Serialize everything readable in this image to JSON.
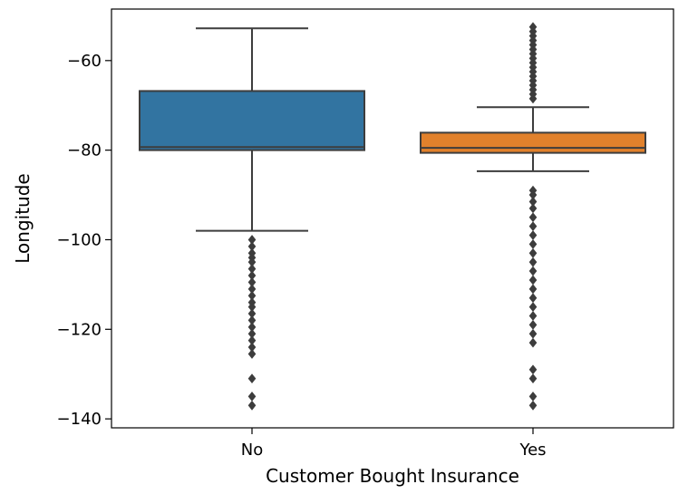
{
  "chart_data": {
    "type": "box",
    "title": "",
    "xlabel": "Customer Bought Insurance",
    "ylabel": "Longitude",
    "ylim": [
      -142,
      -48.5
    ],
    "yticks": [
      -60,
      -80,
      -100,
      -120,
      -140
    ],
    "ytick_labels": [
      "−60",
      "−80",
      "−100",
      "−120",
      "−140"
    ],
    "grid": false,
    "legend": "none",
    "categories": [
      "No",
      "Yes"
    ],
    "boxes": [
      {
        "category": "No",
        "color": "#3274a1",
        "whisker_low": -98,
        "q1": -80,
        "median": -79.3,
        "q3": -66.8,
        "whisker_high": -52.8,
        "outliers": [
          -100,
          -101.5,
          -103,
          -104,
          -105,
          -106.5,
          -108,
          -109.5,
          -111,
          -112.5,
          -114,
          -115,
          -116.5,
          -118,
          -119.5,
          -121,
          -122.5,
          -124,
          -125.5,
          -131,
          -135,
          -137
        ]
      },
      {
        "category": "Yes",
        "color": "#e1812c",
        "whisker_low": -84.7,
        "q1": -80.6,
        "median": -79.5,
        "q3": -76.1,
        "whisker_high": -70.4,
        "outliers": [
          -52.5,
          -53.5,
          -54.5,
          -55.5,
          -56.5,
          -57.5,
          -58.5,
          -59.5,
          -60.5,
          -61.5,
          -62.5,
          -63.5,
          -64.5,
          -65.5,
          -66.5,
          -67.5,
          -68.5,
          -89,
          -90,
          -91.5,
          -93,
          -95,
          -97,
          -99,
          -101,
          -103,
          -105,
          -107,
          -109,
          -111,
          -113,
          -115,
          -117,
          -119,
          -121,
          -123,
          -129,
          -131,
          -135,
          -137
        ]
      }
    ]
  }
}
